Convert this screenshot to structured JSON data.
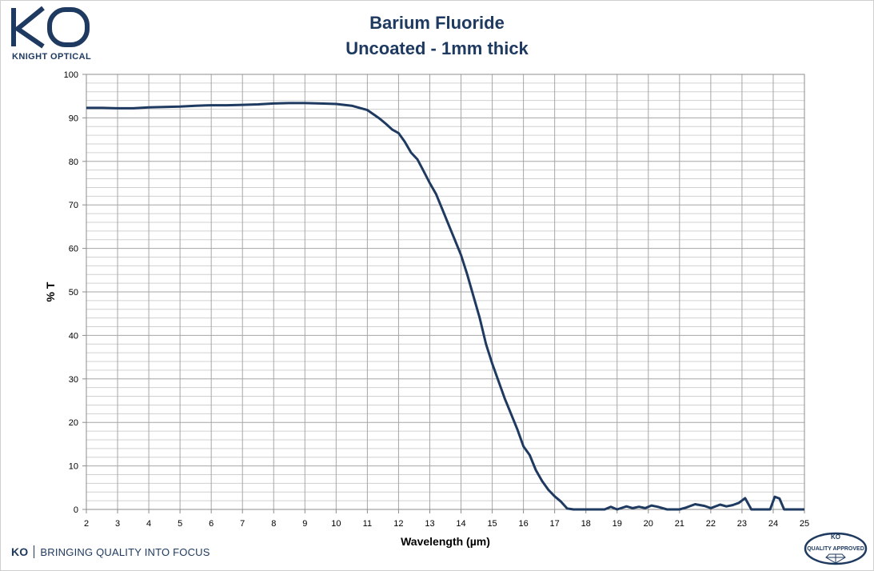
{
  "brand": {
    "logo_letters": "KO",
    "logo_name": "KNIGHT OPTICAL",
    "footer_ko": "KO",
    "tagline": "BRINGING QUALITY INTO FOCUS",
    "badge_top": "KO",
    "badge_text": "QUALITY APPROVED",
    "color": "#1f3a60"
  },
  "chart_data": {
    "type": "line",
    "title": "Barium Fluoride",
    "subtitle": "Uncoated - 1mm thick",
    "xlabel": "Wavelength (µm)",
    "ylabel": "% T",
    "xlim": [
      2,
      25
    ],
    "ylim": [
      0,
      100
    ],
    "xticks": [
      2,
      3,
      4,
      5,
      6,
      7,
      8,
      9,
      10,
      11,
      12,
      13,
      14,
      15,
      16,
      17,
      18,
      19,
      20,
      21,
      22,
      23,
      24,
      25
    ],
    "yticks": [
      0,
      10,
      20,
      30,
      40,
      50,
      60,
      70,
      80,
      90,
      100
    ],
    "minor_y_step": 2,
    "grid": true,
    "line_color": "#1f3a60",
    "series": [
      {
        "x": [
          2,
          2.5,
          3,
          3.5,
          4,
          4.5,
          5,
          5.5,
          6,
          6.5,
          7,
          7.5,
          8,
          8.5,
          9,
          9.5,
          10,
          10.5,
          10.8,
          11,
          11.2,
          11.4,
          11.6,
          11.8,
          12,
          12.2,
          12.4,
          12.6,
          12.8,
          13,
          13.2,
          13.4,
          13.6,
          13.8,
          14,
          14.2,
          14.4,
          14.6,
          14.8,
          15,
          15.2,
          15.4,
          15.6,
          15.8,
          16,
          16.2,
          16.4,
          16.6,
          16.8,
          17,
          17.2,
          17.4,
          17.6,
          18,
          18.6,
          18.8,
          19,
          19.3,
          19.5,
          19.7,
          19.9,
          20.1,
          20.3,
          20.6,
          21,
          21.2,
          21.5,
          21.8,
          22,
          22.3,
          22.5,
          22.7,
          22.9,
          23.1,
          23.3,
          23.6,
          23.9,
          24.05,
          24.2,
          24.35,
          24.6,
          25
        ],
        "y": [
          92.3,
          92.3,
          92.2,
          92.2,
          92.4,
          92.5,
          92.6,
          92.8,
          92.9,
          92.9,
          93.0,
          93.1,
          93.3,
          93.4,
          93.4,
          93.3,
          93.2,
          92.8,
          92.2,
          91.8,
          90.8,
          89.8,
          88.6,
          87.3,
          86.5,
          84.5,
          82.0,
          80.5,
          77.8,
          75.0,
          72.5,
          69.0,
          65.5,
          62.0,
          58.5,
          54.0,
          49.0,
          44.0,
          38.0,
          33.5,
          29.5,
          25.5,
          22.0,
          18.5,
          14.5,
          12.5,
          9.0,
          6.5,
          4.5,
          3.0,
          1.8,
          0.2,
          0,
          0,
          0,
          0.6,
          0,
          0.7,
          0.3,
          0.6,
          0.3,
          0.9,
          0.6,
          0,
          0,
          0.4,
          1.2,
          0.8,
          0.3,
          1.1,
          0.7,
          1.0,
          1.5,
          2.6,
          0,
          0,
          0,
          2.9,
          2.5,
          0,
          0,
          0
        ]
      }
    ]
  }
}
